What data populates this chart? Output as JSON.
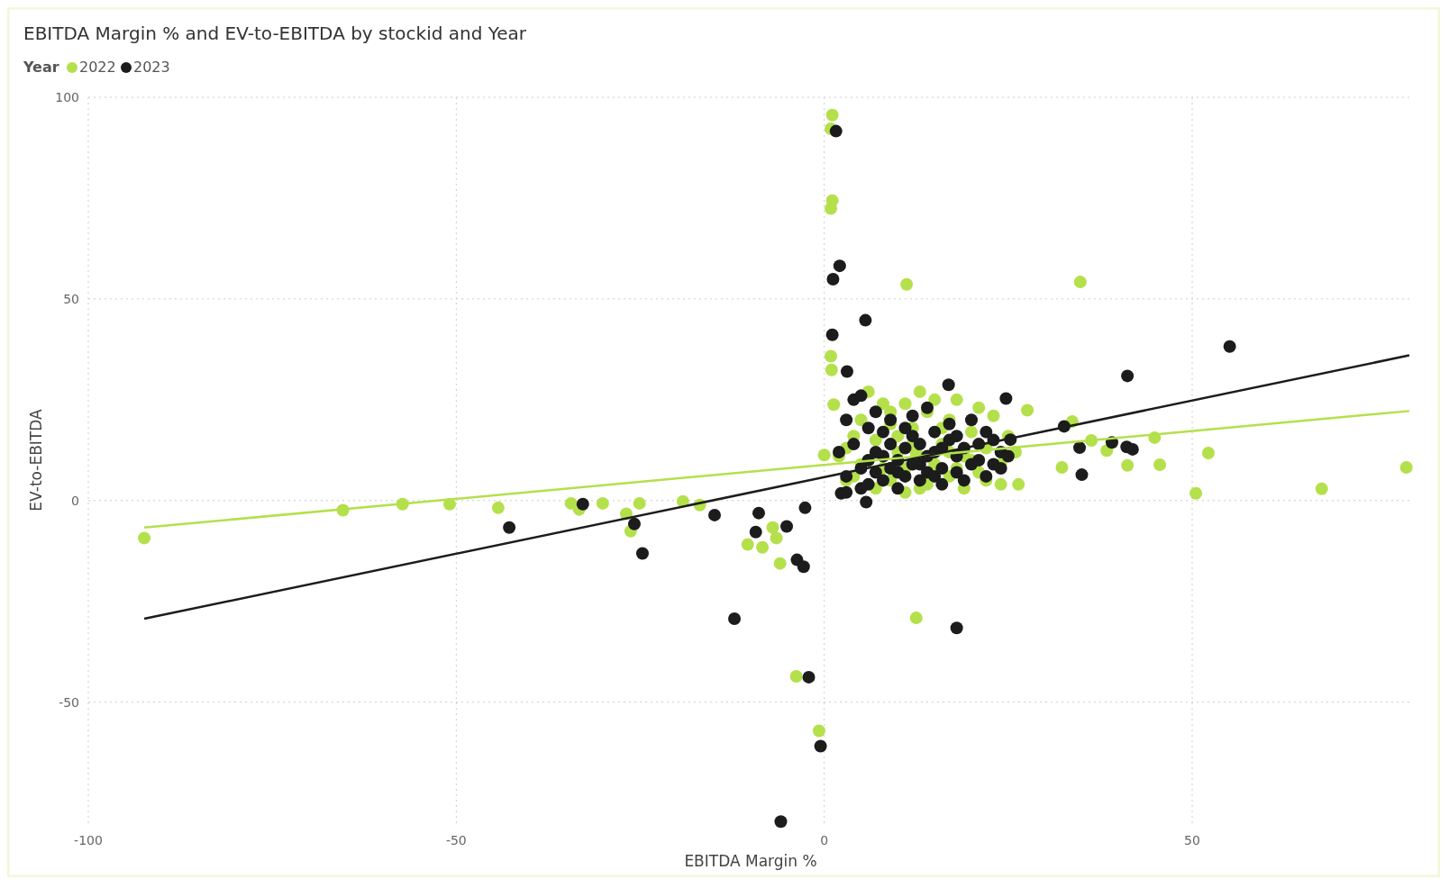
{
  "chart_data": {
    "type": "scatter",
    "title": "EBITDA Margin % and EV-to-EBITDA by stockid and Year",
    "xlabel": "EBITDA Margin %",
    "ylabel": "EV-to-EBITDA",
    "legend_title": "Year",
    "legend": "top left",
    "grid": true,
    "marker": "circle",
    "xlim": [
      -100,
      80
    ],
    "ylim": [
      -80,
      100
    ],
    "xticks": [
      -100,
      -50,
      0,
      50
    ],
    "yticks": [
      -50,
      0,
      50,
      100
    ],
    "series": [
      {
        "name": "2022",
        "color": "#b4e04b",
        "x": [
          1.1,
          0.9,
          1.1,
          0.9,
          11.2,
          34.8,
          0.9,
          1,
          1.3,
          -92.4,
          -65.4,
          -57.3,
          -50.9,
          -44.3,
          -34.4,
          -33.3,
          -30.1,
          -26.9,
          -26.3,
          -25.1,
          -19.2,
          -16.9,
          -10.4,
          -8.4,
          -7,
          -6.5,
          -6,
          -3.8,
          -0.7,
          12.5,
          32.3,
          33.7,
          36.3,
          38.4,
          41.2,
          44.9,
          45.6,
          50.5,
          52.2,
          67.6,
          79.1,
          27.6,
          26.4,
          0,
          3,
          4,
          5,
          6,
          7,
          8,
          9,
          10,
          11,
          12,
          13,
          14,
          15,
          16,
          17,
          18,
          19,
          20,
          21,
          22,
          23,
          24,
          25,
          26,
          6,
          9,
          11,
          14,
          17,
          19,
          21,
          8,
          10,
          12.5,
          16,
          20,
          3,
          5,
          7,
          12,
          15,
          18,
          22,
          24,
          4,
          2,
          11,
          17,
          9,
          13
        ],
        "values": [
          95.6,
          92.2,
          74.4,
          72.4,
          53.6,
          54.2,
          35.8,
          32.4,
          23.8,
          -9.3,
          -2.4,
          -0.9,
          -0.9,
          -1.8,
          -0.7,
          -2.2,
          -0.7,
          -3.3,
          -7.6,
          -0.7,
          -0.2,
          -1.1,
          -10.9,
          -11.6,
          -6.7,
          -9.3,
          -15.6,
          -43.6,
          -57.1,
          -29.1,
          8.2,
          19.6,
          14.9,
          12.4,
          8.7,
          15.6,
          8.9,
          1.8,
          11.8,
          2.9,
          8.2,
          22.4,
          4,
          11.3,
          13,
          6,
          20,
          10,
          15,
          24,
          5,
          12,
          8,
          18,
          3,
          22,
          9,
          14,
          6,
          25,
          11,
          17,
          7,
          13,
          21,
          9,
          16,
          12,
          27,
          19,
          24,
          4,
          20,
          3,
          23,
          8,
          16,
          11.8,
          18,
          10,
          5,
          9,
          3,
          14,
          25,
          8,
          5,
          4,
          16,
          11,
          2,
          12,
          22,
          27
        ]
      },
      {
        "name": "2023",
        "color": "#1c1c1c",
        "x": [
          1.6,
          2.1,
          1.2,
          1.1,
          5.6,
          3.1,
          55.1,
          41.2,
          32.6,
          34.7,
          35,
          39.1,
          41.1,
          41.9,
          25.3,
          24.7,
          16.9,
          18,
          5.7,
          -32.8,
          -42.8,
          -25.8,
          -24.7,
          -14.9,
          -12.2,
          -9.3,
          -8.9,
          -5.1,
          -3.7,
          -2.8,
          -2.6,
          -2.1,
          -0.5,
          -5.9,
          2.3,
          2,
          3,
          4,
          5,
          6,
          7,
          8,
          9,
          10,
          11,
          12,
          13,
          14,
          15,
          16,
          17,
          18,
          19,
          20,
          21,
          22,
          23,
          24,
          25,
          3,
          4,
          5,
          6,
          7,
          8,
          9,
          10,
          11,
          12,
          13,
          14,
          15,
          16,
          17,
          18,
          19,
          20,
          21,
          22,
          23,
          24,
          6,
          8,
          10,
          12,
          14,
          16,
          18,
          7,
          9,
          11,
          13,
          15,
          3,
          5
        ],
        "values": [
          91.6,
          58.2,
          54.9,
          41.1,
          44.7,
          32,
          38.2,
          30.9,
          18.4,
          13.1,
          6.4,
          14.4,
          13.3,
          12.7,
          15.1,
          25.3,
          28.7,
          -31.6,
          -0.4,
          -0.9,
          -6.7,
          -5.8,
          -13.1,
          -3.6,
          -29.3,
          -7.8,
          -3.1,
          -6.4,
          -14.7,
          -16.4,
          -1.8,
          -43.8,
          -60.9,
          -79.6,
          1.8,
          12,
          20,
          25,
          8,
          18,
          22,
          5,
          14,
          10,
          6,
          16,
          9,
          23,
          12,
          4,
          19,
          7,
          13,
          20,
          10,
          6,
          15,
          8,
          11,
          6,
          14,
          26,
          4,
          12,
          17,
          8,
          3,
          13,
          21,
          5,
          11,
          17,
          8,
          15,
          11,
          5,
          9,
          14,
          17,
          9,
          12,
          10,
          11,
          7,
          9,
          7,
          13,
          16,
          7,
          20,
          18,
          14,
          6,
          2,
          3
        ]
      },
      {
        "type": "line",
        "marker": "none",
        "color": "#b4e04b",
        "x": [
          -92.4,
          79.5
        ],
        "values": [
          -6.7,
          22.2
        ]
      },
      {
        "type": "line",
        "marker": "none",
        "color": "#1c1c1c",
        "x": [
          -92.4,
          79.5
        ],
        "values": [
          -29.3,
          36
        ]
      }
    ]
  }
}
